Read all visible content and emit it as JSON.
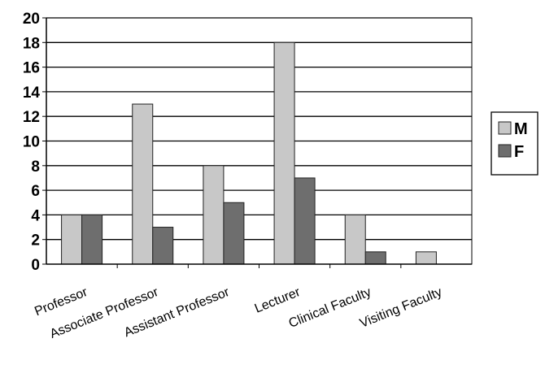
{
  "chart_data": {
    "type": "bar",
    "categories": [
      "Professor",
      "Associate Professor",
      "Assistant Professor",
      "Lecturer",
      "Clinical Faculty",
      "Visiting Faculty"
    ],
    "series": [
      {
        "name": "M",
        "values": [
          4,
          13,
          8,
          18,
          4,
          1
        ],
        "color": "#c8c8c8"
      },
      {
        "name": "F",
        "values": [
          4,
          3,
          5,
          7,
          1,
          0
        ],
        "color": "#6e6e6e"
      }
    ],
    "y_ticks": [
      "0",
      "2",
      "4",
      "6",
      "8",
      "10",
      "12",
      "14",
      "16",
      "18",
      "20"
    ],
    "ylim": [
      0,
      20
    ],
    "grid": true,
    "legend_position": "right",
    "title": "",
    "xlabel": "",
    "ylabel": ""
  }
}
